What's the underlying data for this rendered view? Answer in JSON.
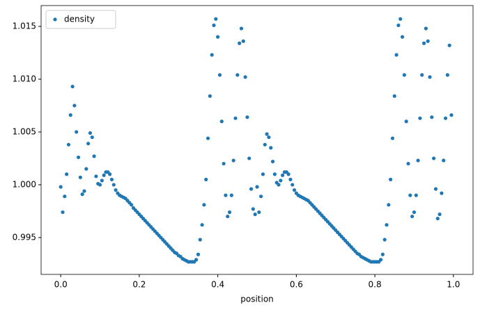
{
  "chart_data": {
    "type": "scatter",
    "xlabel": "position",
    "x": [
      0,
      0.005,
      0.01,
      0.015,
      0.02,
      0.025,
      0.03,
      0.035,
      0.04,
      0.045,
      0.05,
      0.055,
      0.06,
      0.065,
      0.07,
      0.075,
      0.08,
      0.085,
      0.09,
      0.095,
      0.1,
      0.105,
      0.11,
      0.115,
      0.12,
      0.125,
      0.13,
      0.135,
      0.14,
      0.145,
      0.15,
      0.155,
      0.16,
      0.165,
      0.17,
      0.175,
      0.18,
      0.185,
      0.19,
      0.195,
      0.2,
      0.205,
      0.21,
      0.215,
      0.22,
      0.225,
      0.23,
      0.235,
      0.24,
      0.245,
      0.25,
      0.255,
      0.26,
      0.265,
      0.27,
      0.275,
      0.28,
      0.285,
      0.29,
      0.295,
      0.3,
      0.305,
      0.31,
      0.315,
      0.32,
      0.325,
      0.33,
      0.335,
      0.34,
      0.345,
      0.35,
      0.355,
      0.36,
      0.365,
      0.37,
      0.375,
      0.38,
      0.385,
      0.39,
      0.395,
      0.4,
      0.405,
      0.41,
      0.415,
      0.42,
      0.425,
      0.43,
      0.435,
      0.44,
      0.445,
      0.45,
      0.455,
      0.46,
      0.465,
      0.47,
      0.475,
      0.48,
      0.485,
      0.49,
      0.495,
      0.5,
      0.505,
      0.51,
      0.515,
      0.52,
      0.525,
      0.53,
      0.535,
      0.54,
      0.545,
      0.55,
      0.555,
      0.56,
      0.565,
      0.57,
      0.575,
      0.58,
      0.585,
      0.59,
      0.595,
      0.6,
      0.605,
      0.61,
      0.615,
      0.62,
      0.625,
      0.63,
      0.635,
      0.64,
      0.645,
      0.65,
      0.655,
      0.66,
      0.665,
      0.67,
      0.675,
      0.68,
      0.685,
      0.69,
      0.695,
      0.7,
      0.705,
      0.71,
      0.715,
      0.72,
      0.725,
      0.73,
      0.735,
      0.74,
      0.745,
      0.75,
      0.755,
      0.76,
      0.765,
      0.77,
      0.775,
      0.78,
      0.785,
      0.79,
      0.795,
      0.8,
      0.805,
      0.81,
      0.815,
      0.82,
      0.825,
      0.83,
      0.835,
      0.84,
      0.845,
      0.85,
      0.855,
      0.86,
      0.865,
      0.87,
      0.875,
      0.88,
      0.885,
      0.89,
      0.895,
      0.9,
      0.905,
      0.91,
      0.915,
      0.92,
      0.925,
      0.93,
      0.935,
      0.94,
      0.945,
      0.95,
      0.955,
      0.96,
      0.965,
      0.97,
      0.975,
      0.98,
      0.985,
      0.99,
      0.995
    ],
    "series": [
      {
        "name": "density",
        "color": "#1f77b4",
        "values": [
          0.9998,
          0.9974,
          0.9989,
          1.001,
          1.0038,
          1.0066,
          1.0093,
          1.0075,
          1.005,
          1.0026,
          1.0007,
          0.9991,
          0.9994,
          1.0015,
          1.0039,
          1.0049,
          1.0045,
          1.0027,
          1.0008,
          1.0001,
          1.0,
          1.0004,
          1.0009,
          1.0012,
          1.0012,
          1.001,
          1.0005,
          1.0,
          0.9995,
          0.9992,
          0.999,
          0.9989,
          0.9988,
          0.9987,
          0.9985,
          0.9983,
          0.9981,
          0.9978,
          0.9976,
          0.9974,
          0.9972,
          0.997,
          0.9968,
          0.9966,
          0.9964,
          0.9962,
          0.996,
          0.9958,
          0.9956,
          0.9954,
          0.9952,
          0.995,
          0.9948,
          0.9946,
          0.9944,
          0.9942,
          0.994,
          0.9938,
          0.9936,
          0.9935,
          0.9933,
          0.9932,
          0.993,
          0.9929,
          0.9928,
          0.9927,
          0.9927,
          0.9927,
          0.9927,
          0.9929,
          0.9934,
          0.9948,
          0.9962,
          0.9981,
          1.0005,
          1.0044,
          1.0084,
          1.0123,
          1.0151,
          1.0157,
          1.014,
          1.0104,
          1.006,
          1.002,
          0.999,
          0.997,
          0.9974,
          0.999,
          1.0023,
          1.0063,
          1.0104,
          1.0134,
          1.0148,
          1.0136,
          1.0102,
          1.0064,
          1.0025,
          0.9996,
          0.9977,
          0.9972,
          0.9998,
          0.9974,
          0.9989,
          1.001,
          1.0038,
          1.0048,
          1.0045,
          1.0035,
          1.0022,
          1.001,
          1.0002,
          1.0,
          1.0004,
          1.0009,
          1.0012,
          1.0012,
          1.001,
          1.0005,
          1.0,
          0.9995,
          0.9992,
          0.999,
          0.9989,
          0.9988,
          0.9987,
          0.9986,
          0.9985,
          0.9983,
          0.9981,
          0.9979,
          0.9977,
          0.9975,
          0.9973,
          0.9971,
          0.9969,
          0.9967,
          0.9965,
          0.9963,
          0.9961,
          0.9959,
          0.9957,
          0.9955,
          0.9953,
          0.9951,
          0.9949,
          0.9947,
          0.9945,
          0.9943,
          0.9941,
          0.9939,
          0.9937,
          0.9935,
          0.9934,
          0.9932,
          0.9931,
          0.993,
          0.9929,
          0.9928,
          0.9927,
          0.9927,
          0.9927,
          0.9927,
          0.9927,
          0.9929,
          0.9934,
          0.9948,
          0.9962,
          0.9981,
          1.0005,
          1.0044,
          1.0084,
          1.0123,
          1.0151,
          1.0157,
          1.014,
          1.0104,
          1.006,
          1.002,
          0.999,
          0.997,
          0.9974,
          0.999,
          1.0023,
          1.0063,
          1.0104,
          1.0134,
          1.0148,
          1.0136,
          1.0102,
          1.0064,
          1.0025,
          0.9996,
          0.9968,
          0.9972,
          0.9992,
          1.0023,
          1.0063,
          1.0104,
          1.0132,
          1.0066
        ]
      }
    ],
    "xlim": [
      -0.05,
      1.05
    ],
    "xticks": [
      {
        "value": 0,
        "label": "0.0"
      },
      0.2,
      0.4,
      0.6,
      0.8,
      {
        "value": 1,
        "label": "1.0"
      }
    ],
    "ylim": [
      0.99151,
      1.01697
    ],
    "yticks": [
      0.995,
      {
        "value": 1,
        "label": "1.000"
      },
      1.005,
      {
        "value": 1.01,
        "label": "1.010"
      },
      1.015
    ],
    "legend": "upper left"
  }
}
